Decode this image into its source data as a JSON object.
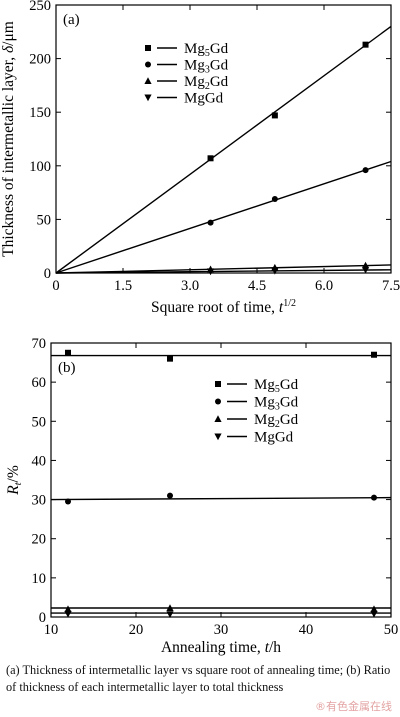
{
  "chart_data": [
    {
      "type": "scatter",
      "panel_label": "(a)",
      "xlabel_text": "Square root of time, ",
      "xlabel_sym": "t",
      "xlabel_sup": "1/2",
      "ylabel_text": "Thickness of intermetallic layer, ",
      "ylabel_sym": "δ",
      "ylabel_unit": "/μm",
      "xlim": [
        0,
        7.5
      ],
      "ylim": [
        0,
        250
      ],
      "xticks": [
        0,
        1.5,
        3.0,
        4.5,
        6.0,
        7.5
      ],
      "xtick_labels": [
        "0",
        "1.5",
        "3.0",
        "4.5",
        "6.0",
        "7.5"
      ],
      "yticks": [
        0,
        50,
        100,
        150,
        200,
        250
      ],
      "ytick_labels": [
        "0",
        "50",
        "100",
        "150",
        "200",
        "250"
      ],
      "grid": false,
      "legend_position": "top-center",
      "series": [
        {
          "name": "Mg5Gd",
          "label_base": "Mg",
          "label_sub": "5",
          "label_tail": "Gd",
          "marker": "square",
          "x": [
            3.46,
            4.9,
            6.93
          ],
          "y": [
            107,
            147,
            213
          ],
          "fit": [
            [
              0,
              0
            ],
            [
              7.5,
              230
            ]
          ]
        },
        {
          "name": "Mg3Gd",
          "label_base": "Mg",
          "label_sub": "3",
          "label_tail": "Gd",
          "marker": "circle",
          "x": [
            3.46,
            4.9,
            6.93
          ],
          "y": [
            47,
            69,
            96
          ],
          "fit": [
            [
              0,
              0
            ],
            [
              7.5,
              104
            ]
          ]
        },
        {
          "name": "Mg2Gd",
          "label_base": "Mg",
          "label_sub": "2",
          "label_tail": "Gd",
          "marker": "triangle-up",
          "x": [
            3.46,
            4.9,
            6.93
          ],
          "y": [
            3.5,
            5,
            7
          ],
          "fit": [
            [
              0,
              0
            ],
            [
              7.5,
              7.5
            ]
          ]
        },
        {
          "name": "MgGd",
          "label_base": "MgGd",
          "label_sub": "",
          "label_tail": "",
          "marker": "triangle-down",
          "x": [
            3.46,
            4.9,
            6.93
          ],
          "y": [
            1.5,
            2,
            3
          ],
          "fit": [
            [
              0,
              0
            ],
            [
              7.5,
              3
            ]
          ]
        }
      ]
    },
    {
      "type": "scatter",
      "panel_label": "(b)",
      "xlabel_text": "Annealing time, ",
      "xlabel_sym": "t",
      "xlabel_unit": "/h",
      "ylabel_sym": "R",
      "ylabel_sub": "t",
      "ylabel_unit": "/%",
      "xlim": [
        10,
        50
      ],
      "ylim": [
        0,
        70
      ],
      "xticks": [
        10,
        20,
        30,
        40,
        50
      ],
      "xtick_labels": [
        "10",
        "20",
        "30",
        "40",
        "50"
      ],
      "yticks": [
        0,
        10,
        20,
        30,
        40,
        50,
        60,
        70
      ],
      "ytick_labels": [
        "0",
        "10",
        "20",
        "30",
        "40",
        "50",
        "60",
        "70"
      ],
      "grid": false,
      "legend_position": "top-right",
      "series": [
        {
          "name": "Mg5Gd",
          "label_base": "Mg",
          "label_sub": "5",
          "label_tail": "Gd",
          "marker": "square",
          "x": [
            12,
            24,
            48
          ],
          "y": [
            67.5,
            66,
            67
          ],
          "fit": [
            [
              10,
              66.8
            ],
            [
              50,
              66.8
            ]
          ]
        },
        {
          "name": "Mg3Gd",
          "label_base": "Mg",
          "label_sub": "3",
          "label_tail": "Gd",
          "marker": "circle",
          "x": [
            12,
            24,
            48
          ],
          "y": [
            29.5,
            31,
            30.5
          ],
          "fit": [
            [
              10,
              30
            ],
            [
              50,
              30.5
            ]
          ]
        },
        {
          "name": "Mg2Gd",
          "label_base": "Mg",
          "label_sub": "2",
          "label_tail": "Gd",
          "marker": "triangle-up",
          "x": [
            12,
            24,
            48
          ],
          "y": [
            2,
            2.3,
            2
          ],
          "fit": [
            [
              10,
              2.3
            ],
            [
              50,
              2.3
            ]
          ]
        },
        {
          "name": "MgGd",
          "label_base": "MgGd",
          "label_sub": "",
          "label_tail": "",
          "marker": "triangle-down",
          "x": [
            12,
            24,
            48
          ],
          "y": [
            0.8,
            0.7,
            0.8
          ],
          "fit": [
            [
              10,
              1
            ],
            [
              50,
              1
            ]
          ]
        }
      ]
    }
  ],
  "caption": "(a) Thickness of intermetallic layer vs square root of annealing time; (b) Ratio of thickness of each intermetallic layer to total thickness",
  "watermark": "®有色金属在线"
}
